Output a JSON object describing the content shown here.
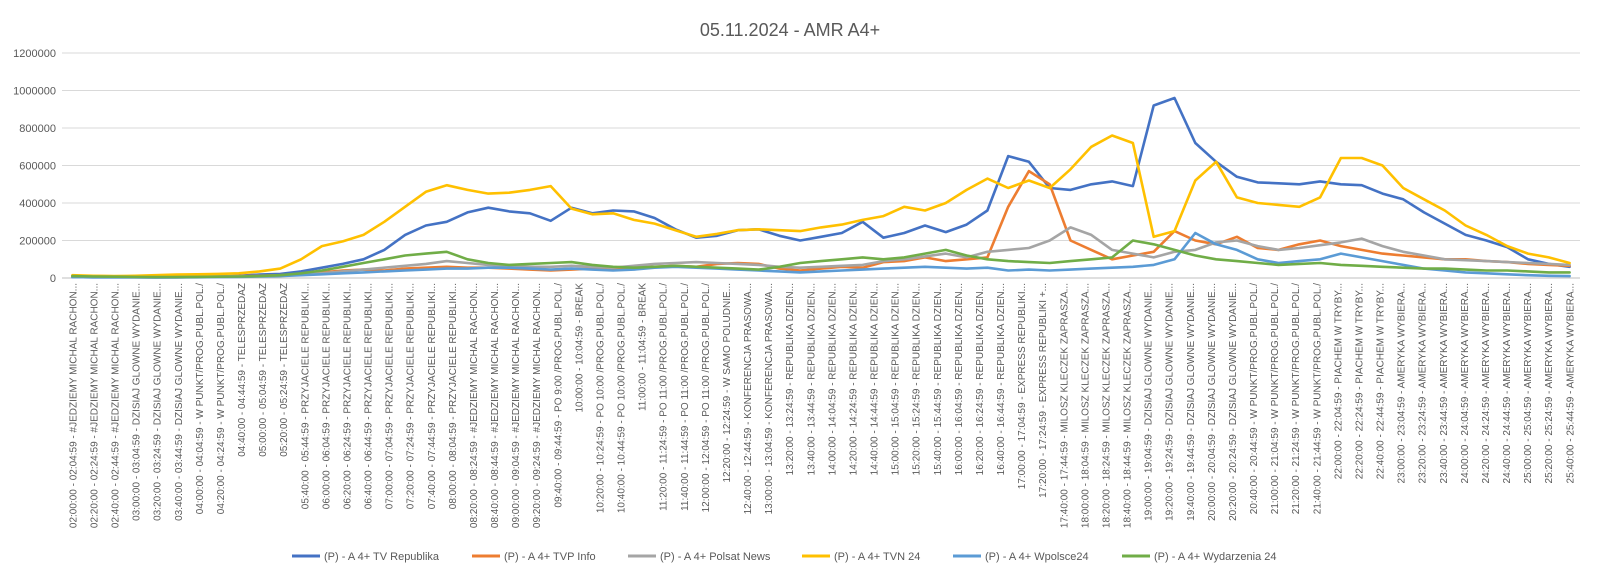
{
  "chart_data": {
    "type": "line",
    "title": "05.11.2024 - AMR A4+",
    "xlabel": "",
    "ylabel": "",
    "ylim": [
      0,
      1200000
    ],
    "yticks": [
      "0",
      "200000",
      "400000",
      "600000",
      "800000",
      "1000000",
      "1200000"
    ],
    "ytick_values": [
      0,
      200000,
      400000,
      600000,
      800000,
      1000000,
      1200000
    ],
    "grid": true,
    "legend_position": "bottom",
    "x_tick_labels": [
      "02:00:00 - 02:04:59 - #JEDZIEMY MICHAL RACHON...",
      "02:20:00 - 02:24:59 - #JEDZIEMY MICHAL RACHON...",
      "02:40:00 - 02:44:59 - #JEDZIEMY MICHAL RACHON...",
      "03:00:00 - 03:04:59 - DZISIAJ GLOWNE WYDANIE...",
      "03:20:00 - 03:24:59 - DZISIAJ GLOWNE WYDANIE...",
      "03:40:00 - 03:44:59 - DZISIAJ GLOWNE WYDANIE...",
      "04:00:00 - 04:04:59 - W PUNKT/PROG.PUBL.POL./",
      "04:20:00 - 04:24:59 - W PUNKT/PROG.PUBL.POL./",
      "04:40:00 - 04:44:59 - TELESPRZEDAZ",
      "05:00:00 - 05:04:59 - TELESPRZEDAZ",
      "05:20:00 - 05:24:59 - TELESPRZEDAZ",
      "05:40:00 - 05:44:59 - PRZYJACIELE REPUBLIKI...",
      "06:00:00 - 06:04:59 - PRZYJACIELE REPUBLIKI...",
      "06:20:00 - 06:24:59 - PRZYJACIELE REPUBLIKI...",
      "06:40:00 - 06:44:59 - PRZYJACIELE REPUBLIKI...",
      "07:00:00 - 07:04:59 - PRZYJACIELE REPUBLIKI...",
      "07:20:00 - 07:24:59 - PRZYJACIELE REPUBLIKI...",
      "07:40:00 - 07:44:59 - PRZYJACIELE REPUBLIKI...",
      "08:00:00 - 08:04:59 - PRZYJACIELE REPUBLIKI...",
      "08:20:00 - 08:24:59 - #JEDZIEMY MICHAL RACHON...",
      "08:40:00 - 08:44:59 - #JEDZIEMY MICHAL RACHON...",
      "09:00:00 - 09:04:59 - #JEDZIEMY MICHAL RACHON...",
      "09:20:00 - 09:24:59 - #JEDZIEMY MICHAL RACHON...",
      "09:40:00 - 09:44:59 - PO 9:00 /PROG.PUBL.POL./",
      "10:00:00 - 10:04:59 - BREAK",
      "10:20:00 - 10:24:59 - PO 10:00 /PROG.PUBL.POL./",
      "10:40:00 - 10:44:59 - PO 10:00 /PROG.PUBL.POL./",
      "11:00:00 - 11:04:59 - BREAK",
      "11:20:00 - 11:24:59 - PO 11:00 /PROG.PUBL.POL./",
      "11:40:00 - 11:44:59 - PO 11:00 /PROG.PUBL.POL./",
      "12:00:00 - 12:04:59 - PO 11:00 /PROG.PUBL.POL./",
      "12:20:00 - 12:24:59 - W SAMO POLUDNIE...",
      "12:40:00 - 12:44:59 - KONFERENCJA PRASOWA...",
      "13:00:00 - 13:04:59 - KONFERENCJA PRASOWA...",
      "13:20:00 - 13:24:59 - REPUBLIKA DZIEN...",
      "13:40:00 - 13:44:59 - REPUBLIKA DZIEN...",
      "14:00:00 - 14:04:59 - REPUBLIKA DZIEN...",
      "14:20:00 - 14:24:59 - REPUBLIKA DZIEN...",
      "14:40:00 - 14:44:59 - REPUBLIKA DZIEN...",
      "15:00:00 - 15:04:59 - REPUBLIKA DZIEN...",
      "15:20:00 - 15:24:59 - REPUBLIKA DZIEN...",
      "15:40:00 - 15:44:59 - REPUBLIKA DZIEN...",
      "16:00:00 - 16:04:59 - REPUBLIKA DZIEN...",
      "16:20:00 - 16:24:59 - REPUBLIKA DZIEN...",
      "16:40:00 - 16:44:59 - REPUBLIKA DZIEN...",
      "17:00:00 - 17:04:59 - EXPRESS REPUBLIKI...",
      "17:20:00 - 17:24:59 - EXPRESS REPUBLIKI +...",
      "17:40:00 - 17:44:59 - MILOSZ KLECZEK ZAPRASZA...",
      "18:00:00 - 18:04:59 - MILOSZ KLECZEK ZAPRASZA...",
      "18:20:00 - 18:24:59 - MILOSZ KLECZEK ZAPRASZA...",
      "18:40:00 - 18:44:59 - MILOSZ KLECZEK ZAPRASZA...",
      "19:00:00 - 19:04:59 - DZISIAJ GLOWNE WYDANIE...",
      "19:20:00 - 19:24:59 - DZISIAJ GLOWNE WYDANIE...",
      "19:40:00 - 19:44:59 - DZISIAJ GLOWNE WYDANIE...",
      "20:00:00 - 20:04:59 - DZISIAJ GLOWNE WYDANIE...",
      "20:20:00 - 20:24:59 - DZISIAJ GLOWNE WYDANIE...",
      "20:40:00 - 20:44:59 - W PUNKT/PROG.PUBL.POL./",
      "21:00:00 - 21:04:59 - W PUNKT/PROG.PUBL.POL./",
      "21:20:00 - 21:24:59 - W PUNKT/PROG.PUBL.POL./",
      "21:40:00 - 21:44:59 - W PUNKT/PROG.PUBL.POL./",
      "22:00:00 - 22:04:59 - PIACHEM W TRYBY...",
      "22:20:00 - 22:24:59 - PIACHEM W TRYBY...",
      "22:40:00 - 22:44:59 - PIACHEM W TRYBY...",
      "23:00:00 - 23:04:59 - AMERYKA WYBIERA...",
      "23:20:00 - 23:24:59 - AMERYKA WYBIERA...",
      "23:40:00 - 23:44:59 - AMERYKA WYBIERA...",
      "24:00:00 - 24:04:59 - AMERYKA WYBIERA...",
      "24:20:00 - 24:24:59 - AMERYKA WYBIERA...",
      "24:40:00 - 24:44:59 - AMERYKA WYBIERA...",
      "25:00:00 - 25:04:59 - AMERYKA WYBIERA...",
      "25:20:00 - 25:24:59 - AMERYKA WYBIERA...",
      "25:40:00 - 25:44:59 - AMERYKA WYBIERA..."
    ],
    "series": [
      {
        "name": "(P) - A 4+ TV Republika",
        "color": "#4472c4",
        "values": [
          5000,
          4000,
          4000,
          4000,
          3000,
          4000,
          5000,
          8000,
          12000,
          18000,
          22000,
          35000,
          55000,
          75000,
          100000,
          150000,
          230000,
          280000,
          300000,
          350000,
          375000,
          355000,
          345000,
          305000,
          375000,
          345000,
          360000,
          355000,
          320000,
          260000,
          215000,
          225000,
          255000,
          260000,
          225000,
          200000,
          220000,
          240000,
          300000,
          215000,
          240000,
          280000,
          245000,
          285000,
          360000,
          650000,
          620000,
          480000,
          470000,
          500000,
          515000,
          490000,
          920000,
          960000,
          720000,
          620000,
          540000,
          510000,
          505000,
          500000,
          515000,
          500000,
          495000,
          450000,
          420000,
          350000,
          290000,
          230000,
          200000,
          165000,
          100000,
          75000,
          60000
        ]
      },
      {
        "name": "(P) - A 4+ TVP Info",
        "color": "#ed7d31",
        "values": [
          12000,
          10000,
          9000,
          8000,
          7000,
          7000,
          8000,
          8000,
          10000,
          12000,
          15000,
          20000,
          30000,
          40000,
          45000,
          40000,
          50000,
          55000,
          60000,
          55000,
          55000,
          50000,
          45000,
          40000,
          45000,
          50000,
          50000,
          55000,
          60000,
          65000,
          60000,
          75000,
          80000,
          75000,
          50000,
          40000,
          50000,
          60000,
          55000,
          85000,
          90000,
          110000,
          90000,
          100000,
          110000,
          380000,
          570000,
          500000,
          200000,
          150000,
          100000,
          120000,
          140000,
          250000,
          200000,
          180000,
          220000,
          160000,
          150000,
          180000,
          200000,
          170000,
          150000,
          130000,
          120000,
          110000,
          100000,
          100000,
          90000,
          85000,
          75000,
          70000,
          65000
        ]
      },
      {
        "name": "(P) - A 4+ Polsat News",
        "color": "#a5a5a5",
        "values": [
          10000,
          9000,
          8000,
          8000,
          7000,
          7000,
          8000,
          8000,
          9000,
          10000,
          12000,
          18000,
          25000,
          35000,
          45000,
          55000,
          65000,
          75000,
          90000,
          80000,
          70000,
          65000,
          60000,
          60000,
          65000,
          60000,
          55000,
          65000,
          75000,
          80000,
          85000,
          80000,
          75000,
          70000,
          60000,
          55000,
          60000,
          65000,
          70000,
          90000,
          100000,
          115000,
          130000,
          110000,
          140000,
          150000,
          160000,
          200000,
          270000,
          230000,
          150000,
          130000,
          110000,
          140000,
          150000,
          190000,
          200000,
          170000,
          150000,
          160000,
          175000,
          190000,
          210000,
          170000,
          140000,
          120000,
          100000,
          95000,
          90000,
          85000,
          80000,
          75000,
          70000
        ]
      },
      {
        "name": "(P) - A 4+ TVN 24",
        "color": "#ffc000",
        "values": [
          15000,
          12000,
          10000,
          12000,
          15000,
          18000,
          20000,
          22000,
          25000,
          35000,
          50000,
          100000,
          170000,
          195000,
          230000,
          300000,
          380000,
          460000,
          495000,
          470000,
          450000,
          455000,
          470000,
          490000,
          370000,
          340000,
          345000,
          310000,
          290000,
          255000,
          220000,
          235000,
          255000,
          260000,
          255000,
          250000,
          270000,
          285000,
          310000,
          330000,
          380000,
          360000,
          400000,
          470000,
          530000,
          480000,
          520000,
          480000,
          580000,
          700000,
          760000,
          720000,
          220000,
          250000,
          520000,
          620000,
          430000,
          400000,
          390000,
          380000,
          430000,
          640000,
          640000,
          600000,
          480000,
          420000,
          360000,
          280000,
          230000,
          170000,
          130000,
          110000,
          80000
        ]
      },
      {
        "name": "(P) - A 4+ Wpolsce24",
        "color": "#5b9bd5",
        "values": [
          5000,
          4000,
          4000,
          4000,
          3000,
          3000,
          4000,
          5000,
          6000,
          8000,
          10000,
          15000,
          20000,
          25000,
          30000,
          35000,
          40000,
          45000,
          50000,
          50000,
          55000,
          55000,
          50000,
          45000,
          50000,
          45000,
          40000,
          45000,
          55000,
          60000,
          55000,
          50000,
          45000,
          40000,
          35000,
          30000,
          35000,
          40000,
          45000,
          50000,
          55000,
          60000,
          55000,
          50000,
          55000,
          40000,
          45000,
          40000,
          45000,
          50000,
          55000,
          60000,
          70000,
          100000,
          240000,
          180000,
          150000,
          100000,
          80000,
          90000,
          100000,
          130000,
          110000,
          90000,
          70000,
          50000,
          40000,
          30000,
          25000,
          20000,
          15000,
          12000,
          10000
        ]
      },
      {
        "name": "(P) - A 4+ Wydarzenia 24",
        "color": "#70ad47",
        "values": [
          10000,
          8000,
          7000,
          6000,
          5000,
          5000,
          6000,
          7000,
          8000,
          10000,
          15000,
          25000,
          40000,
          60000,
          80000,
          100000,
          120000,
          130000,
          140000,
          100000,
          80000,
          70000,
          75000,
          80000,
          85000,
          70000,
          60000,
          55000,
          60000,
          65000,
          60000,
          55000,
          50000,
          45000,
          60000,
          80000,
          90000,
          100000,
          110000,
          100000,
          110000,
          130000,
          150000,
          120000,
          100000,
          90000,
          85000,
          80000,
          90000,
          100000,
          110000,
          200000,
          180000,
          150000,
          120000,
          100000,
          90000,
          80000,
          70000,
          75000,
          80000,
          70000,
          65000,
          60000,
          55000,
          50000,
          50000,
          45000,
          40000,
          40000,
          35000,
          30000,
          30000
        ]
      }
    ]
  }
}
